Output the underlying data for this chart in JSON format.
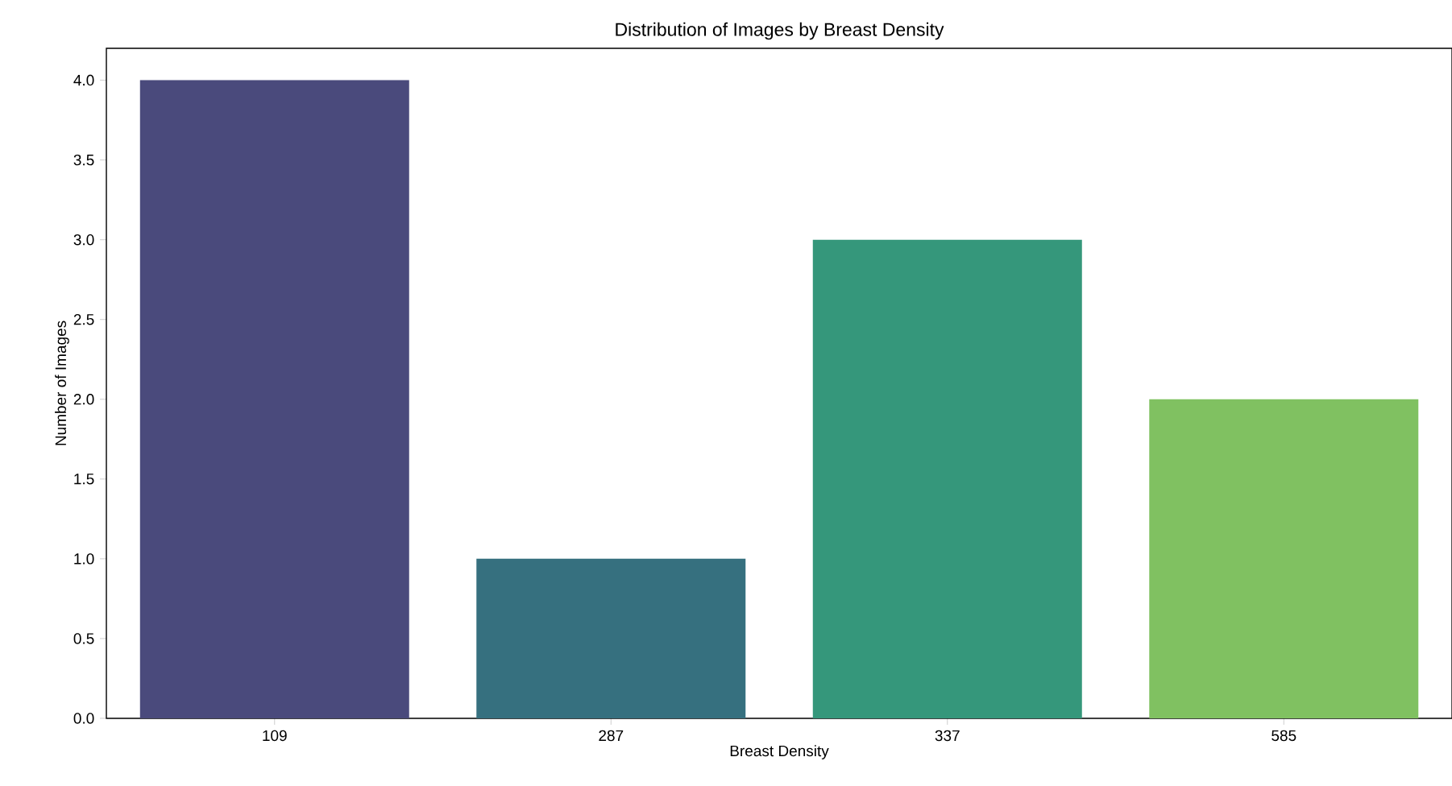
{
  "chart_data": {
    "type": "bar",
    "title": "Distribution of Images by Breast Density",
    "xlabel": "Breast Density",
    "ylabel": "Number of Images",
    "categories": [
      "109",
      "287",
      "337",
      "585"
    ],
    "values": [
      4,
      1,
      3,
      2
    ],
    "colors": [
      "#4a4a7c",
      "#36707f",
      "#35977b",
      "#80c161"
    ],
    "ylim": [
      0,
      4.2
    ],
    "yticks": [
      {
        "value": 0,
        "label": "0.0"
      },
      {
        "value": 0.5,
        "label": "0.5"
      },
      {
        "value": 1,
        "label": "1.0"
      },
      {
        "value": 1.5,
        "label": "1.5"
      },
      {
        "value": 2,
        "label": "2.0"
      },
      {
        "value": 2.5,
        "label": "2.5"
      },
      {
        "value": 3,
        "label": "3.0"
      },
      {
        "value": 3.5,
        "label": "3.5"
      },
      {
        "value": 4,
        "label": "4.0"
      }
    ],
    "grid": false
  }
}
